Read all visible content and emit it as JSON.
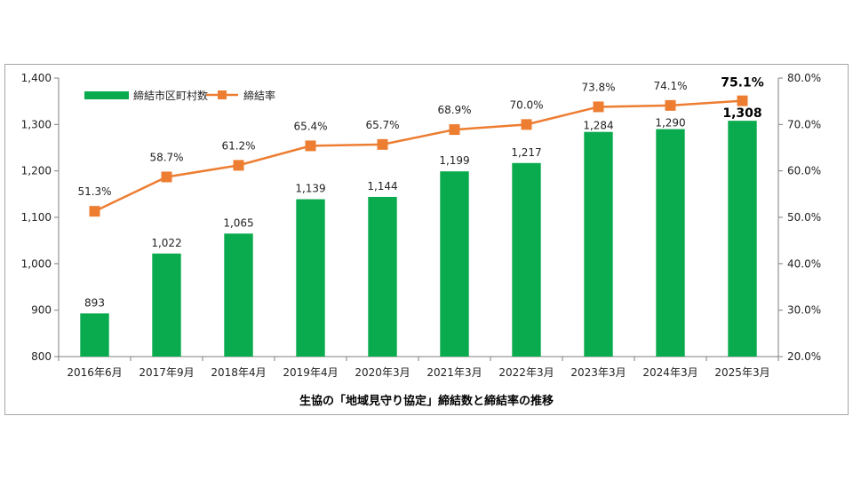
{
  "chart_data": {
    "type": "bar+line",
    "title": "生協の「地域見守り協定」締結数と締結率の推移",
    "categories": [
      "2016年6月",
      "2017年9月",
      "2018年4月",
      "2019年4月",
      "2020年3月",
      "2021年3月",
      "2022年3月",
      "2023年3月",
      "2024年3月",
      "2025年3月"
    ],
    "series": [
      {
        "name": "締結市区町村数",
        "type": "bar",
        "axis": "left",
        "color": "#0aab4f",
        "values": [
          893,
          1022,
          1065,
          1139,
          1144,
          1199,
          1217,
          1284,
          1290,
          1308
        ],
        "labels": [
          "893",
          "1,022",
          "1,065",
          "1,139",
          "1,144",
          "1,199",
          "1,217",
          "1,284",
          "1,290",
          "1,308"
        ]
      },
      {
        "name": "締結率",
        "type": "line",
        "axis": "right",
        "color": "#ed7d31",
        "values": [
          51.3,
          58.7,
          61.2,
          65.4,
          65.7,
          68.9,
          70.0,
          73.8,
          74.1,
          75.1
        ],
        "labels": [
          "51.3%",
          "58.7%",
          "61.2%",
          "65.4%",
          "65.7%",
          "68.9%",
          "70.0%",
          "73.8%",
          "74.1%",
          "75.1%"
        ]
      }
    ],
    "y_left": {
      "min": 800,
      "max": 1400,
      "ticks": [
        800,
        900,
        1000,
        1100,
        1200,
        1300,
        1400
      ],
      "tick_labels": [
        "800",
        "900",
        "1,000",
        "1,100",
        "1,200",
        "1,300",
        "1,400"
      ]
    },
    "y_right": {
      "min": 20,
      "max": 80,
      "ticks": [
        20,
        30,
        40,
        50,
        60,
        70,
        80
      ],
      "tick_labels": [
        "20.0%",
        "30.0%",
        "40.0%",
        "50.0%",
        "60.0%",
        "70.0%",
        "80.0%"
      ]
    },
    "grid": false,
    "legend_position": "top-left",
    "highlight_last": true
  }
}
